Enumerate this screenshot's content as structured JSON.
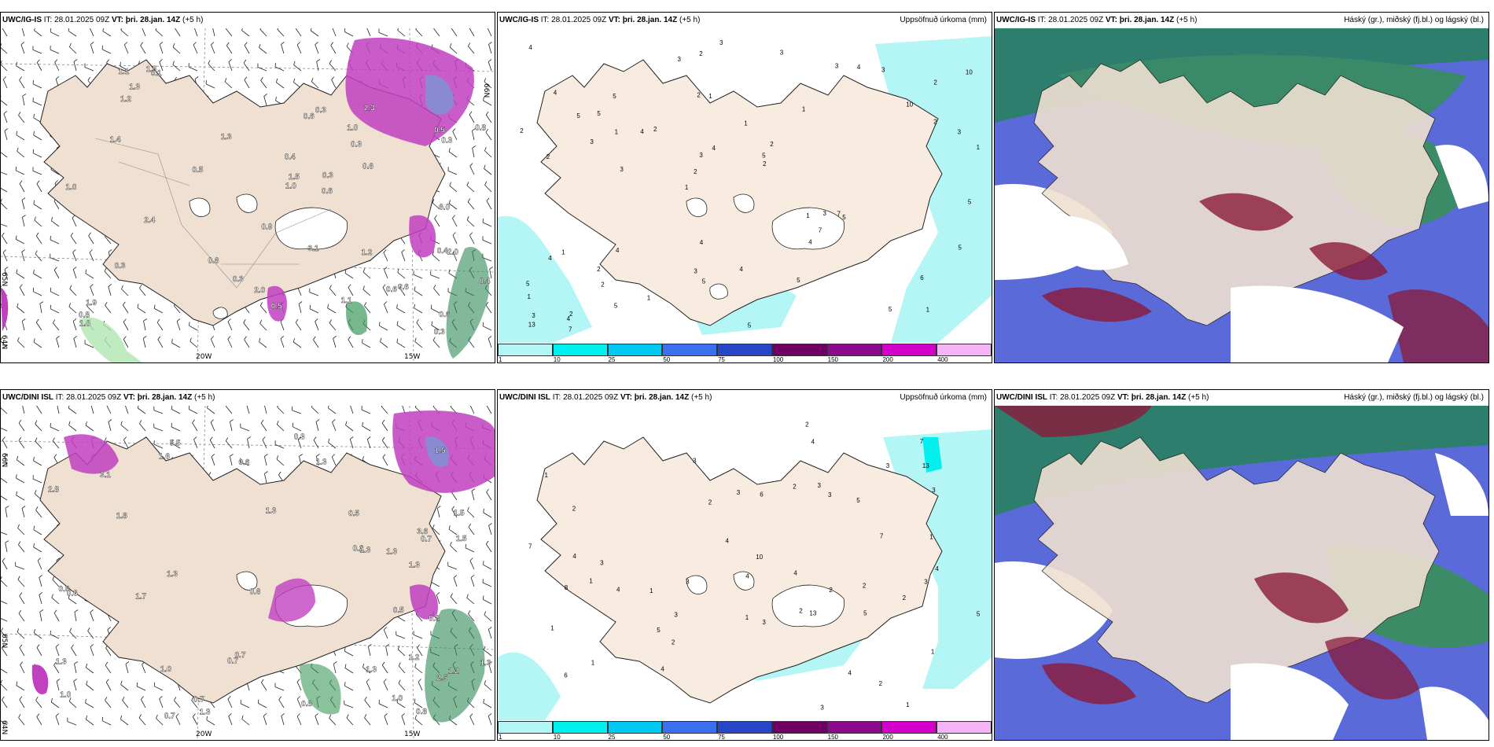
{
  "panels": {
    "top_left": {
      "model": "UWC/IG-IS",
      "it": "IT: 28.01.2025 09Z",
      "vt_label": "VT:",
      "vt": "þri. 28.jan. 14Z",
      "offset": "(+5 h)",
      "right_title": "",
      "lon_labels": [
        "20W",
        "15W"
      ],
      "lat_labels": [
        "66N",
        "65N",
        "64N"
      ]
    },
    "top_mid": {
      "model": "UWC/IG-IS",
      "it": "IT: 28.01.2025 09Z",
      "vt_label": "VT:",
      "vt": "þri. 28.jan. 14Z",
      "offset": "(+5 h)",
      "right_title": "Uppsöfnuð úrkoma (mm)"
    },
    "top_right": {
      "model": "UWC/IG-IS",
      "it": "IT: 28.01.2025 09Z",
      "vt_label": "VT:",
      "vt": "þri. 28.jan. 14Z",
      "offset": "(+5 h)",
      "right_title": "Háský (gr.), miðský (fj.bl.) og lágský (bl.)"
    },
    "bottom_left": {
      "model": "UWC/DINI ISL",
      "it": "IT: 28.01.2025 09Z",
      "vt_label": "VT:",
      "vt": "þri. 28.jan. 14Z",
      "offset": "(+5 h)",
      "right_title": "",
      "lon_labels": [
        "20W",
        "15W"
      ],
      "lat_labels": [
        "66N",
        "65N",
        "64N"
      ]
    },
    "bottom_mid": {
      "model": "UWC/DINI ISL",
      "it": "IT: 28.01.2025 09Z",
      "vt_label": "VT:",
      "vt": "þri. 28.jan. 14Z",
      "offset": "(+5 h)",
      "right_title": "Uppsöfnuð úrkoma (mm)"
    },
    "bottom_right": {
      "model": "UWC/DINI ISL",
      "it": "IT: 28.01.2025 09Z",
      "vt_label": "VT:",
      "vt": "þri. 28.jan. 14Z",
      "offset": "(+5 h)",
      "right_title": "Háský (gr.), miðský (fj.bl.) og lágský (bl.)"
    }
  },
  "precip_colorbar": {
    "labels": [
      "1",
      "10",
      "25",
      "50",
      "75",
      "100",
      "150",
      "200",
      "400"
    ],
    "colors": [
      "#b4f6f6",
      "#00f0f0",
      "#00c8f0",
      "#3c6ef0",
      "#2846c8",
      "#6e0064",
      "#8c0a8c",
      "#d200c8",
      "#f5b4f5"
    ]
  },
  "precip_values": {
    "top": [
      "1",
      "2",
      "2",
      "1",
      "1",
      "2",
      "2",
      "1",
      "1",
      "2",
      "1",
      "2",
      "1",
      "2",
      "5",
      "4",
      "2",
      "1",
      "1",
      "2",
      "2",
      "3",
      "3",
      "5",
      "3",
      "4",
      "5",
      "6",
      "7",
      "5",
      "4",
      "3",
      "4",
      "5",
      "3",
      "5",
      "3",
      "5",
      "2",
      "4",
      "10",
      "10",
      "7",
      "5",
      "2",
      "7",
      "13",
      "4",
      "3",
      "3",
      "3",
      "2",
      "5",
      "4",
      "4",
      "3",
      "3",
      "4",
      "5",
      "4",
      "1",
      "3",
      "1",
      "5",
      "4",
      "5",
      "5"
    ],
    "bottom": [
      "1",
      "1",
      "2",
      "1",
      "1",
      "2",
      "1",
      "1",
      "5",
      "3",
      "3",
      "2",
      "2",
      "3",
      "4",
      "1",
      "2",
      "10",
      "7",
      "6",
      "7",
      "6",
      "7",
      "5",
      "4",
      "4",
      "4",
      "4",
      "4",
      "13",
      "13",
      "8",
      "5",
      "3",
      "2",
      "2",
      "3",
      "4",
      "3",
      "3",
      "3",
      "3",
      "4",
      "2",
      "3",
      "3",
      "3",
      "4",
      "2",
      "1",
      "2",
      "1",
      "5"
    ]
  },
  "wind_labels": {
    "top": [
      "0.3",
      "0.3",
      "0.4",
      "0.4",
      "0.3",
      "0.6",
      "0.4",
      "0.3",
      "2.0",
      "1.9",
      "0.1",
      "3.1",
      "6.0",
      "0.5",
      "1.1",
      "0.3",
      "0.3",
      "0.5",
      "0.6",
      "1.2",
      "2.4",
      "2.3",
      "0.5",
      "1.3",
      "1.5",
      "1.0",
      "0.6",
      "1.1",
      "1.2",
      "0.6",
      "2.0",
      "0.8",
      "1.5",
      "0.3",
      "1.0",
      "0.6",
      "0.6",
      "0.9",
      "1.3",
      "1.4",
      "1.0",
      "0.6",
      "1.0",
      "0.8"
    ],
    "bottom": [
      "1.2",
      "1.5",
      "1.2",
      "1.3",
      "1.0",
      "5.5",
      "3.6",
      "1.0",
      "1.5",
      "1.8",
      "1.5",
      "2.8",
      "1.3",
      "1.3",
      "1.3",
      "3.1",
      "2.5",
      "1.6",
      "0.7",
      "0.7",
      "0.8",
      "0.6",
      "0.8",
      "0.2",
      "0.7",
      "0.7",
      "0.3",
      "1.3",
      "0.5",
      "1.3",
      "1.7",
      "1.3",
      "0.7",
      "0.6",
      "0.8",
      "1.0",
      "1.3",
      "0.6",
      "0.8",
      "1.3",
      "0.5",
      "1.3"
    ]
  }
}
